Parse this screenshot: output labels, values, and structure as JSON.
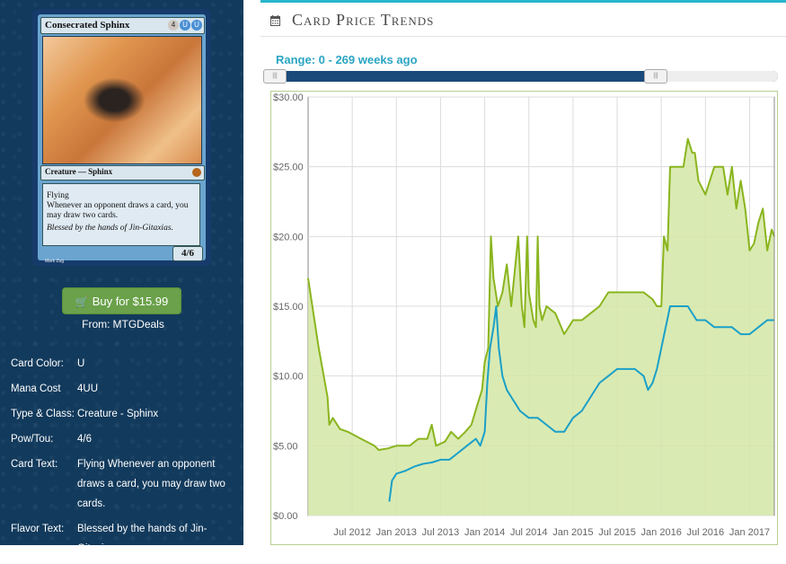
{
  "card": {
    "name": "Consecrated Sphinx",
    "mana_symbols": [
      "4",
      "U",
      "U"
    ],
    "type_line": "Creature — Sphinx",
    "rules_text": [
      "Flying",
      "Whenever an opponent draws a card, you may draw two cards."
    ],
    "flavor_text": "Blessed by the hands of Jin-Gitaxias.",
    "power_toughness": "4/6",
    "artist": "Mark Zug"
  },
  "buy": {
    "label": "Buy for $15.99",
    "from_label": "From:",
    "source": "MTGDeals"
  },
  "details": [
    {
      "label": "Card Color:",
      "value": "U"
    },
    {
      "label": "Mana Cost",
      "value": "4UU"
    },
    {
      "label": "Type & Class:",
      "value": "Creature - Sphinx"
    },
    {
      "label": "Pow/Tou:",
      "value": "4/6"
    },
    {
      "label": "Card Text:",
      "value": "Flying Whenever an opponent draws a card, you may draw two cards."
    },
    {
      "label": "Flavor Text:",
      "value": "Blessed by the hands of Jin-Gitaxias."
    }
  ],
  "panel": {
    "title": "Card Price Trends",
    "title_icon": "calendar-icon",
    "range_label": "Range: 0 - 269 weeks ago",
    "range_weeks": [
      0,
      269
    ]
  },
  "colors": {
    "sidebar_bg": "#123a5c",
    "accent_teal": "#27b5cc",
    "buy_green": "#6aa14a",
    "series_green": "#8ab51e",
    "series_blue": "#1aa0c8",
    "fill_green": "#d4e6a6"
  },
  "chart_data": {
    "type": "line",
    "title": "",
    "xlabel": "",
    "ylabel": "",
    "ylim": [
      0,
      30
    ],
    "yticks": [
      "$0.00",
      "$5.00",
      "$10.00",
      "$15.00",
      "$20.00",
      "$25.00",
      "$30.00"
    ],
    "xticks": [
      "Jul 2012",
      "Jan 2013",
      "Jul 2013",
      "Jan 2014",
      "Jul 2014",
      "Jan 2015",
      "Jul 2015",
      "Jan 2016",
      "Jul 2016",
      "Jan 2017"
    ],
    "grid": true,
    "series": [
      {
        "name": "",
        "color": "#8ab51e",
        "filled": true,
        "x": [
          2012.0,
          2012.12,
          2012.22,
          2012.24,
          2012.28,
          2012.36,
          2012.45,
          2012.6,
          2012.75,
          2012.8,
          2012.9,
          2013.0,
          2013.15,
          2013.25,
          2013.35,
          2013.4,
          2013.45,
          2013.55,
          2013.62,
          2013.7,
          2013.78,
          2013.85,
          2013.92,
          2013.97,
          2014.0,
          2014.04,
          2014.07,
          2014.1,
          2014.15,
          2014.2,
          2014.25,
          2014.3,
          2014.38,
          2014.42,
          2014.45,
          2014.48,
          2014.5,
          2014.55,
          2014.58,
          2014.6,
          2014.62,
          2014.65,
          2014.7,
          2014.8,
          2014.9,
          2015.0,
          2015.1,
          2015.2,
          2015.3,
          2015.4,
          2015.5,
          2015.6,
          2015.7,
          2015.8,
          2015.9,
          2015.95,
          2016.0,
          2016.03,
          2016.07,
          2016.1,
          2016.15,
          2016.25,
          2016.3,
          2016.35,
          2016.38,
          2016.42,
          2016.5,
          2016.6,
          2016.7,
          2016.75,
          2016.8,
          2016.85,
          2016.9,
          2016.95,
          2017.0,
          2017.05,
          2017.1,
          2017.15,
          2017.2,
          2017.25,
          2017.28
        ],
        "y": [
          17,
          12,
          8.5,
          6.5,
          7,
          6.2,
          6.0,
          5.5,
          5.0,
          4.7,
          4.8,
          5.0,
          5.0,
          5.5,
          5.5,
          6.5,
          5.0,
          5.3,
          6.0,
          5.5,
          6.0,
          6.5,
          8.0,
          9.0,
          11.0,
          12.0,
          20.0,
          17.0,
          15.0,
          16.0,
          18.0,
          15.0,
          20.0,
          15.0,
          13.5,
          20.0,
          16.0,
          14.0,
          13.5,
          20.0,
          15.0,
          14.0,
          15.0,
          14.5,
          13.0,
          14.0,
          14.0,
          14.5,
          15.0,
          16.0,
          16.0,
          16.0,
          16.0,
          16.0,
          15.5,
          15.0,
          15.0,
          20.0,
          19.0,
          25.0,
          25.0,
          25.0,
          27.0,
          26.0,
          26.0,
          24.0,
          23.0,
          25.0,
          25.0,
          23.0,
          25.0,
          22.0,
          24.0,
          22.0,
          19.0,
          19.5,
          21.0,
          22.0,
          19.0,
          20.5,
          20.0
        ]
      },
      {
        "name": "",
        "color": "#1aa0c8",
        "filled": false,
        "x": [
          2012.92,
          2012.95,
          2013.0,
          2013.1,
          2013.2,
          2013.3,
          2013.4,
          2013.5,
          2013.6,
          2013.7,
          2013.8,
          2013.9,
          2013.95,
          2014.0,
          2014.03,
          2014.06,
          2014.1,
          2014.13,
          2014.16,
          2014.2,
          2014.25,
          2014.3,
          2014.35,
          2014.4,
          2014.5,
          2014.6,
          2014.7,
          2014.8,
          2014.9,
          2015.0,
          2015.1,
          2015.2,
          2015.3,
          2015.4,
          2015.5,
          2015.6,
          2015.7,
          2015.8,
          2015.85,
          2015.9,
          2015.95,
          2016.0,
          2016.1,
          2016.2,
          2016.3,
          2016.4,
          2016.5,
          2016.6,
          2016.7,
          2016.8,
          2016.9,
          2017.0,
          2017.1,
          2017.2,
          2017.28
        ],
        "y": [
          1.0,
          2.5,
          3.0,
          3.2,
          3.5,
          3.7,
          3.8,
          4.0,
          4.0,
          4.5,
          5.0,
          5.5,
          5.0,
          6.0,
          9.5,
          12.0,
          13.5,
          15.0,
          12.0,
          10.0,
          9.0,
          8.5,
          8.0,
          7.5,
          7.0,
          7.0,
          6.5,
          6.0,
          6.0,
          7.0,
          7.5,
          8.5,
          9.5,
          10.0,
          10.5,
          10.5,
          10.5,
          10.0,
          9.0,
          9.5,
          10.5,
          12.0,
          15.0,
          15.0,
          15.0,
          14.0,
          14.0,
          13.5,
          13.5,
          13.5,
          13.0,
          13.0,
          13.5,
          14.0,
          14.0
        ]
      }
    ]
  }
}
